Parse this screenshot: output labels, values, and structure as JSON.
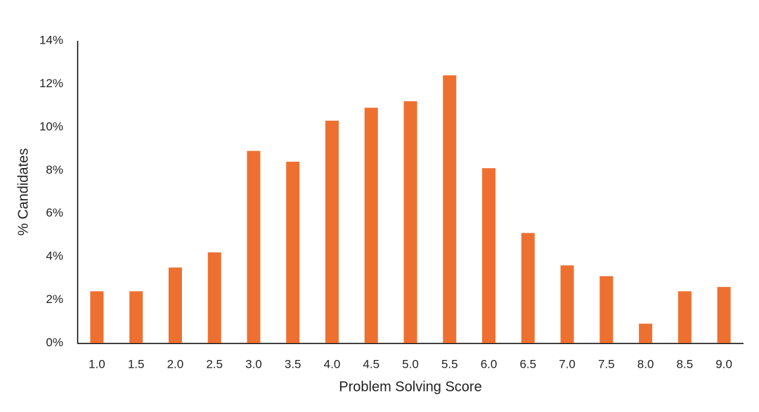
{
  "chart_data": {
    "type": "bar",
    "x_label": "Problem Solving Score",
    "y_label": "% Candidates",
    "categories": [
      "1.0",
      "1.5",
      "2.0",
      "2.5",
      "3.0",
      "3.5",
      "4.0",
      "4.5",
      "5.0",
      "5.5",
      "6.0",
      "6.5",
      "7.0",
      "7.5",
      "8.0",
      "8.5",
      "9.0"
    ],
    "values": [
      2.4,
      2.4,
      3.5,
      4.2,
      8.9,
      8.4,
      10.3,
      10.9,
      11.2,
      12.4,
      8.1,
      5.1,
      3.6,
      3.1,
      0.9,
      2.4,
      2.6
    ],
    "color": "#ed7031",
    "ylim": [
      0,
      14
    ],
    "yticks": [
      {
        "value": 0,
        "label": "0%"
      },
      {
        "value": 2,
        "label": "2%"
      },
      {
        "value": 4,
        "label": "4%"
      },
      {
        "value": 6,
        "label": "6%"
      },
      {
        "value": 8,
        "label": "8%"
      },
      {
        "value": 10,
        "label": "10%"
      },
      {
        "value": 12,
        "label": "12%"
      },
      {
        "value": 14,
        "label": "14%"
      }
    ],
    "grid": false
  }
}
